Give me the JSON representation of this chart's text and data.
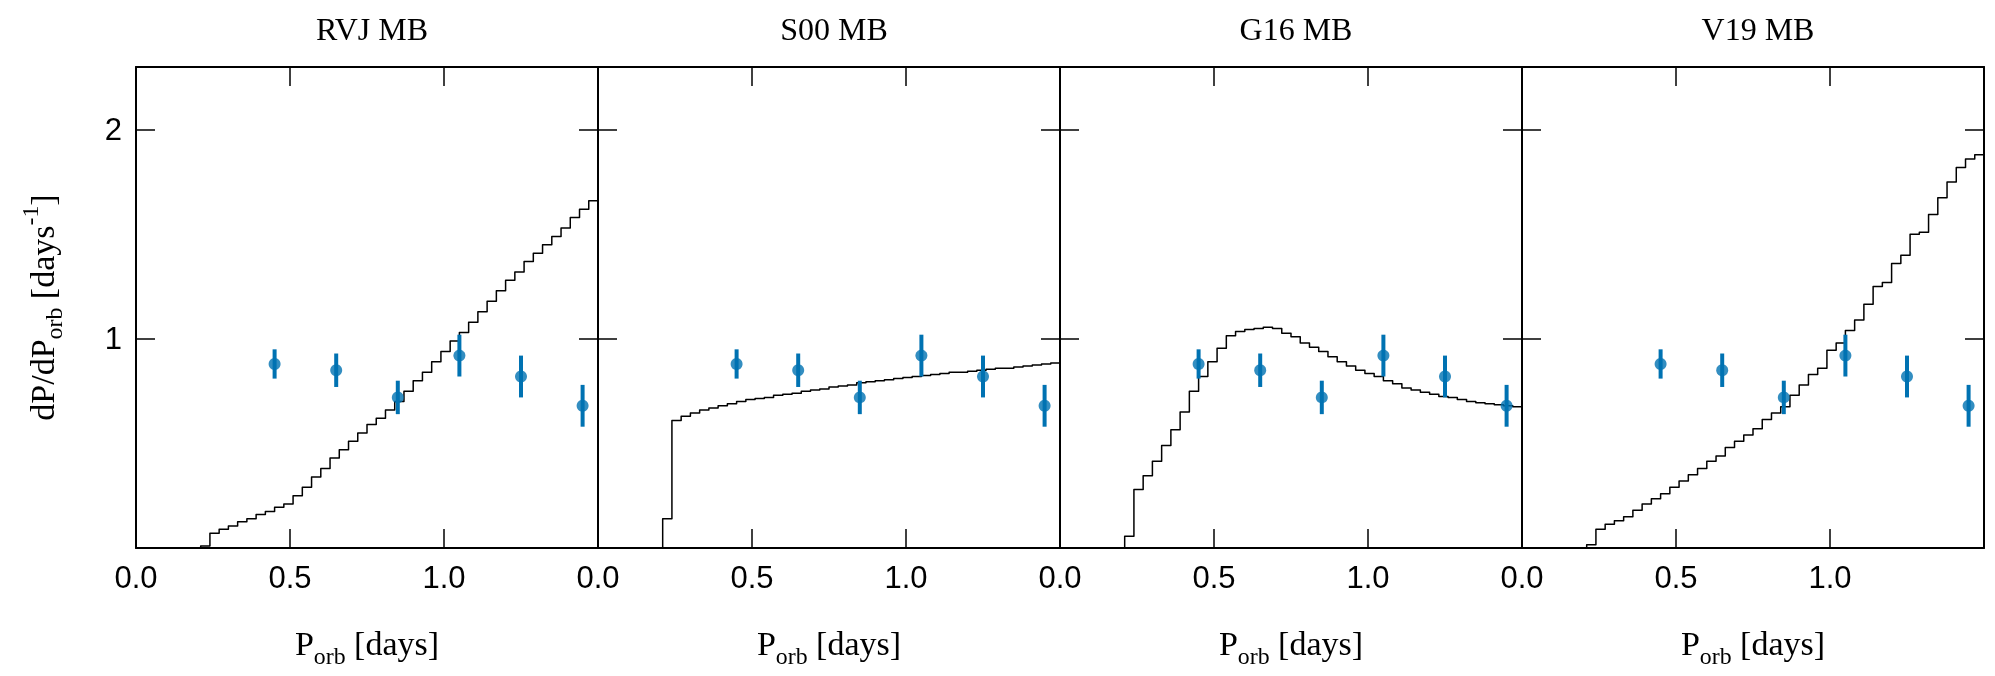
{
  "chart_data": [
    {
      "type": "histogram",
      "title": "RVJ MB",
      "xlabel": "P$_{orb}$ [days]",
      "ylabel": "dP/dP$_{orb}$ [days$^{-1}$]",
      "xlim": [
        0,
        1.5
      ],
      "xticks": [
        {
          "value": 0,
          "label": "0.0"
        },
        {
          "value": 0.5,
          "label": "0.5"
        },
        {
          "value": 1,
          "label": "1.0"
        }
      ],
      "ylim": [
        0,
        2.3
      ],
      "yticks": [
        1,
        2
      ],
      "bins": [
        0.21,
        0.24,
        0.27,
        0.3,
        0.33,
        0.36,
        0.39,
        0.42,
        0.45,
        0.48,
        0.51,
        0.54,
        0.57,
        0.6,
        0.63,
        0.66,
        0.69,
        0.72,
        0.75,
        0.78,
        0.81,
        0.84,
        0.87,
        0.9,
        0.93,
        0.96,
        0.99,
        1.02,
        1.05,
        1.08,
        1.11,
        1.14,
        1.17,
        1.2,
        1.23,
        1.26,
        1.29,
        1.32,
        1.35,
        1.38,
        1.41,
        1.44,
        1.47,
        1.5
      ],
      "series": [
        {
          "type": "histogram",
          "color": "#000000",
          "values": [
            0.01,
            0.07,
            0.09,
            0.105,
            0.125,
            0.14,
            0.16,
            0.175,
            0.195,
            0.21,
            0.25,
            0.29,
            0.34,
            0.38,
            0.43,
            0.47,
            0.51,
            0.55,
            0.59,
            0.62,
            0.66,
            0.7,
            0.75,
            0.8,
            0.84,
            0.89,
            0.94,
            0.99,
            1.03,
            1.08,
            1.13,
            1.18,
            1.23,
            1.28,
            1.32,
            1.37,
            1.41,
            1.45,
            1.49,
            1.53,
            1.58,
            1.62,
            1.66
          ]
        },
        {
          "type": "scatter",
          "color": "#0072b2",
          "marker": "circle",
          "x": [
            0.45,
            0.65,
            0.85,
            1.05,
            1.25,
            1.45
          ],
          "values": [
            0.88,
            0.85,
            0.72,
            0.92,
            0.82,
            0.68
          ],
          "errors": [
            0.07,
            0.08,
            0.08,
            0.1,
            0.1,
            0.1
          ]
        }
      ]
    },
    {
      "type": "histogram",
      "title": "S00 MB",
      "xlabel": "P$_{orb}$ [days]",
      "xlim": [
        0,
        1.5
      ],
      "xticks": [
        {
          "value": 0,
          "label": "0.0"
        },
        {
          "value": 0.5,
          "label": "0.5"
        },
        {
          "value": 1,
          "label": "1.0"
        }
      ],
      "ylim": [
        0,
        2.3
      ],
      "tick_labels": "x",
      "bins": [
        0.21,
        0.24,
        0.27,
        0.3,
        0.33,
        0.36,
        0.39,
        0.42,
        0.45,
        0.48,
        0.51,
        0.54,
        0.57,
        0.6,
        0.63,
        0.66,
        0.69,
        0.72,
        0.75,
        0.78,
        0.81,
        0.84,
        0.87,
        0.9,
        0.93,
        0.96,
        0.99,
        1.02,
        1.05,
        1.08,
        1.11,
        1.14,
        1.17,
        1.2,
        1.23,
        1.26,
        1.29,
        1.32,
        1.35,
        1.38,
        1.41,
        1.44,
        1.47,
        1.5
      ],
      "series": [
        {
          "type": "histogram",
          "color": "#000000",
          "values": [
            0.14,
            0.61,
            0.63,
            0.645,
            0.66,
            0.67,
            0.68,
            0.69,
            0.7,
            0.71,
            0.715,
            0.72,
            0.73,
            0.735,
            0.74,
            0.75,
            0.755,
            0.76,
            0.77,
            0.775,
            0.78,
            0.79,
            0.795,
            0.8,
            0.805,
            0.81,
            0.815,
            0.82,
            0.825,
            0.83,
            0.835,
            0.84,
            0.84,
            0.845,
            0.85,
            0.855,
            0.86,
            0.86,
            0.865,
            0.87,
            0.875,
            0.88,
            0.885
          ]
        },
        {
          "type": "scatter",
          "color": "#0072b2",
          "marker": "circle",
          "x": [
            0.45,
            0.65,
            0.85,
            1.05,
            1.25,
            1.45
          ],
          "values": [
            0.88,
            0.85,
            0.72,
            0.92,
            0.82,
            0.68
          ],
          "errors": [
            0.07,
            0.08,
            0.08,
            0.1,
            0.1,
            0.1
          ]
        }
      ]
    },
    {
      "type": "histogram",
      "title": "G16 MB",
      "xlabel": "P$_{orb}$ [days]",
      "xlim": [
        0,
        1.5
      ],
      "xticks": [
        {
          "value": 0,
          "label": "0.0"
        },
        {
          "value": 0.5,
          "label": "0.5"
        },
        {
          "value": 1,
          "label": "1.0"
        }
      ],
      "ylim": [
        0,
        2.3
      ],
      "tick_labels": "x",
      "bins": [
        0.21,
        0.24,
        0.27,
        0.3,
        0.33,
        0.36,
        0.39,
        0.42,
        0.45,
        0.48,
        0.51,
        0.54,
        0.57,
        0.6,
        0.63,
        0.66,
        0.69,
        0.72,
        0.75,
        0.78,
        0.81,
        0.84,
        0.87,
        0.9,
        0.93,
        0.96,
        0.99,
        1.02,
        1.05,
        1.08,
        1.11,
        1.14,
        1.17,
        1.2,
        1.23,
        1.26,
        1.29,
        1.32,
        1.35,
        1.38,
        1.41,
        1.44,
        1.47,
        1.5
      ],
      "series": [
        {
          "type": "histogram",
          "color": "#000000",
          "values": [
            0.056,
            0.28,
            0.345,
            0.415,
            0.49,
            0.565,
            0.65,
            0.75,
            0.82,
            0.89,
            0.955,
            1.015,
            1.035,
            1.045,
            1.05,
            1.055,
            1.05,
            1.027,
            1.01,
            0.98,
            0.96,
            0.94,
            0.915,
            0.89,
            0.87,
            0.85,
            0.835,
            0.82,
            0.8,
            0.785,
            0.765,
            0.755,
            0.745,
            0.735,
            0.725,
            0.72,
            0.71,
            0.7,
            0.695,
            0.69,
            0.685,
            0.68,
            0.675
          ]
        },
        {
          "type": "scatter",
          "color": "#0072b2",
          "marker": "circle",
          "x": [
            0.45,
            0.65,
            0.85,
            1.05,
            1.25,
            1.45
          ],
          "values": [
            0.88,
            0.85,
            0.72,
            0.92,
            0.82,
            0.68
          ],
          "errors": [
            0.07,
            0.08,
            0.08,
            0.1,
            0.1,
            0.1
          ]
        }
      ]
    },
    {
      "type": "histogram",
      "title": "V19 MB",
      "xlabel": "P$_{orb}$ [days]",
      "xlim": [
        0,
        1.5
      ],
      "xticks": [
        {
          "value": 0,
          "label": "0.0"
        },
        {
          "value": 0.5,
          "label": "0.5"
        },
        {
          "value": 1,
          "label": "1.0"
        }
      ],
      "ylim": [
        0,
        2.3
      ],
      "tick_labels": "x",
      "bins": [
        0.21,
        0.24,
        0.27,
        0.3,
        0.33,
        0.36,
        0.39,
        0.42,
        0.45,
        0.48,
        0.51,
        0.54,
        0.57,
        0.6,
        0.63,
        0.66,
        0.69,
        0.72,
        0.75,
        0.78,
        0.81,
        0.84,
        0.87,
        0.9,
        0.93,
        0.96,
        0.99,
        1.02,
        1.05,
        1.08,
        1.11,
        1.14,
        1.17,
        1.2,
        1.23,
        1.26,
        1.29,
        1.32,
        1.35,
        1.38,
        1.41,
        1.44,
        1.47,
        1.5
      ],
      "series": [
        {
          "type": "histogram",
          "color": "#000000",
          "values": [
            0.015,
            0.09,
            0.114,
            0.13,
            0.15,
            0.18,
            0.21,
            0.235,
            0.26,
            0.29,
            0.32,
            0.35,
            0.38,
            0.415,
            0.44,
            0.48,
            0.51,
            0.54,
            0.57,
            0.615,
            0.645,
            0.675,
            0.73,
            0.78,
            0.83,
            0.86,
            0.945,
            0.98,
            1.04,
            1.09,
            1.165,
            1.25,
            1.27,
            1.36,
            1.4,
            1.5,
            1.51,
            1.595,
            1.675,
            1.75,
            1.82,
            1.86,
            1.88
          ]
        },
        {
          "type": "scatter",
          "color": "#0072b2",
          "marker": "circle",
          "x": [
            0.45,
            0.65,
            0.85,
            1.05,
            1.25,
            1.45
          ],
          "values": [
            0.88,
            0.85,
            0.72,
            0.92,
            0.82,
            0.68
          ],
          "errors": [
            0.07,
            0.08,
            0.08,
            0.1,
            0.1,
            0.1
          ]
        }
      ]
    }
  ]
}
